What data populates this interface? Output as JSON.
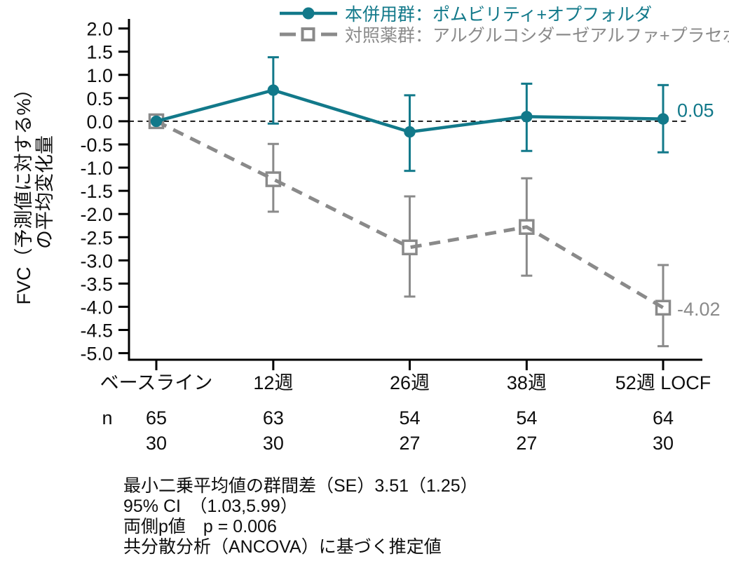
{
  "colors": {
    "treatment_teal": "#12798a",
    "control_gray": "#8a8a8a",
    "axis_black": "#000000",
    "background": "#ffffff"
  },
  "legend": {
    "items": [
      {
        "label": "本併用群：ポムビリティ+オプフォルダ",
        "color": "#12798a",
        "marker": "filled-circle-solid-line"
      },
      {
        "label": "対照薬群：アルグルコシダーゼアルファ+プラセボ",
        "color": "#8a8a8a",
        "marker": "open-square-dashed-line"
      }
    ]
  },
  "y_axis": {
    "title_line1": "FVC（予測値に対する%）",
    "title_line2": "の平均変化量",
    "tick_labels": [
      "2.0",
      "1.5",
      "1.0",
      "0.5",
      "0.0",
      "-0.5",
      "-1.0",
      "-1.5",
      "-2.0",
      "-2.5",
      "-3.0",
      "-3.5",
      "-4.0",
      "-4.5",
      "-5.0"
    ]
  },
  "x_axis": {
    "labels": [
      "ベースライン",
      "12週",
      "26週",
      "38週",
      "52週 LOCF"
    ],
    "weeks": [
      0,
      12,
      26,
      38,
      52
    ]
  },
  "n_table": {
    "row_label": "n",
    "rows": [
      {
        "values": [
          "65",
          "63",
          "54",
          "54",
          "64"
        ],
        "color": "#12798a"
      },
      {
        "values": [
          "30",
          "30",
          "27",
          "27",
          "30"
        ],
        "color": "#8a8a8a"
      }
    ]
  },
  "footer": {
    "lines": [
      "最小二乗平均値の群間差（SE）3.51（1.25）",
      "95% CI　（1.03,5.99）",
      "両側p値　p = 0.006",
      "共分散分析（ANCOVA）に基づく推定値"
    ]
  },
  "chart_data": {
    "type": "line",
    "title": "",
    "xlabel": "",
    "ylabel": "FVC（予測値に対する%）の平均変化量",
    "x_labels": [
      "ベースライン",
      "12週",
      "26週",
      "38週",
      "52週 LOCF"
    ],
    "x_weeks": [
      0,
      12,
      26,
      38,
      52
    ],
    "ylim": [
      -5.0,
      2.0
    ],
    "ytick_step": 0.5,
    "grid": false,
    "zero_reference_line": true,
    "legend_position": "top",
    "series": [
      {
        "name": "本併用群：ポムビリティ+オプフォルダ",
        "color": "#12798a",
        "line_style": "solid",
        "marker": "filled-circle",
        "values": [
          0.0,
          0.67,
          -0.23,
          0.1,
          0.05
        ],
        "ci_low": [
          null,
          -0.05,
          -1.07,
          -0.64,
          -0.67
        ],
        "ci_high": [
          null,
          1.38,
          0.56,
          0.81,
          0.78
        ],
        "end_label": "0.05",
        "n": [
          65,
          63,
          54,
          54,
          64
        ]
      },
      {
        "name": "対照薬群：アルグルコシダーゼアルファ+プラセボ",
        "color": "#8a8a8a",
        "line_style": "dashed",
        "marker": "open-square",
        "values": [
          0.0,
          -1.25,
          -2.72,
          -2.28,
          -4.02
        ],
        "ci_low": [
          null,
          -1.95,
          -3.78,
          -3.33,
          -4.85
        ],
        "ci_high": [
          null,
          -0.49,
          -1.62,
          -1.23,
          -3.1
        ],
        "end_label": "-4.02",
        "n": [
          30,
          30,
          27,
          27,
          30
        ]
      }
    ]
  }
}
